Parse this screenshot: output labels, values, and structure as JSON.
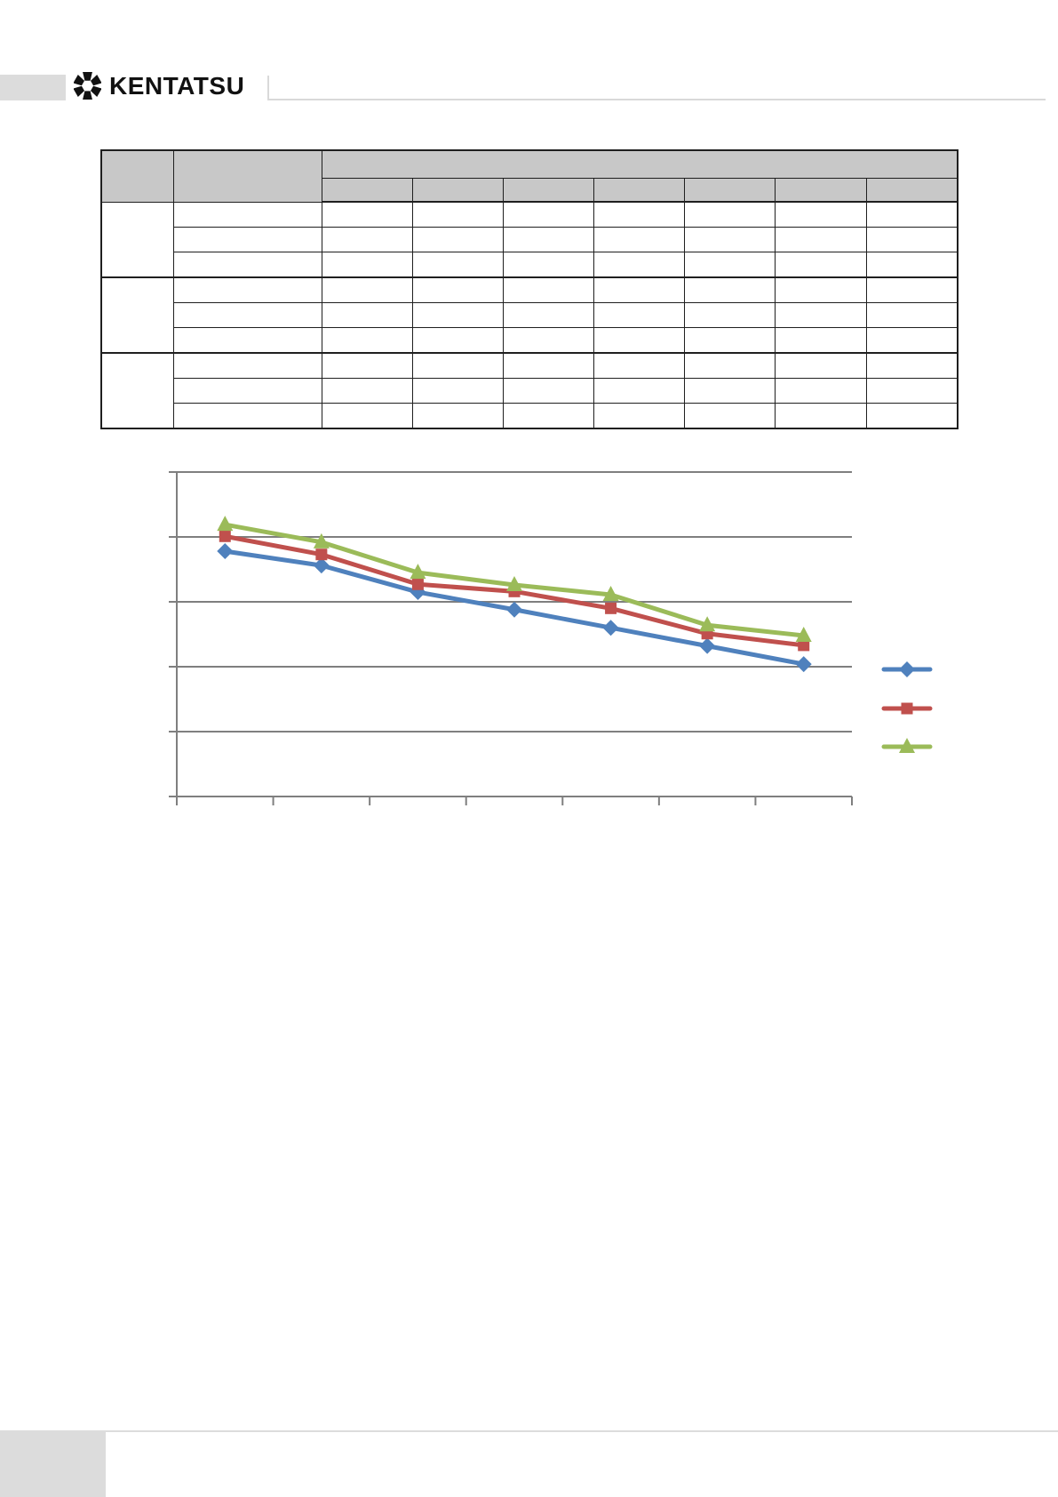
{
  "header": {
    "brand": "KENTATSU",
    "logo_icon": "gear-snowflake-icon",
    "bar_color": "#dcdcdc",
    "rule_color": "#d9d9d9",
    "text_color": "#111111"
  },
  "table": {
    "header_fill": "#c8c8c8",
    "border_color": "#1f1f1f",
    "header": {
      "corner_cell": "",
      "label_cell": "",
      "merged_span_cell": "",
      "sub_cells": [
        "",
        "",
        "",
        "",
        "",
        "",
        ""
      ]
    },
    "groups": [
      {
        "label": "",
        "rows": [
          [
            "",
            "",
            "",
            "",
            "",
            "",
            "",
            ""
          ],
          [
            "",
            "",
            "",
            "",
            "",
            "",
            "",
            ""
          ],
          [
            "",
            "",
            "",
            "",
            "",
            "",
            "",
            ""
          ]
        ]
      },
      {
        "label": "",
        "rows": [
          [
            "",
            "",
            "",
            "",
            "",
            "",
            "",
            ""
          ],
          [
            "",
            "",
            "",
            "",
            "",
            "",
            "",
            ""
          ],
          [
            "",
            "",
            "",
            "",
            "",
            "",
            "",
            ""
          ]
        ]
      },
      {
        "label": "",
        "rows": [
          [
            "",
            "",
            "",
            "",
            "",
            "",
            "",
            ""
          ],
          [
            "",
            "",
            "",
            "",
            "",
            "",
            "",
            ""
          ],
          [
            "",
            "",
            "",
            "",
            "",
            "",
            "",
            ""
          ]
        ]
      }
    ]
  },
  "chart_data": {
    "type": "line",
    "title": "",
    "xlabel": "",
    "ylabel": "",
    "categories": [
      "",
      "",
      "",
      "",
      "",
      "",
      ""
    ],
    "series": [
      {
        "name": "",
        "marker": "diamond",
        "color": "#4F81BD",
        "values": [
          3.78,
          3.56,
          3.15,
          2.88,
          2.6,
          2.32,
          2.04
        ]
      },
      {
        "name": "",
        "marker": "square",
        "color": "#C0504D",
        "values": [
          4.01,
          3.73,
          3.27,
          3.16,
          2.9,
          2.51,
          2.33
        ]
      },
      {
        "name": "",
        "marker": "triangle",
        "color": "#9BBB59",
        "values": [
          4.19,
          3.92,
          3.45,
          3.26,
          3.11,
          2.64,
          2.48
        ]
      }
    ],
    "ylim": [
      0,
      5
    ],
    "gridline_values": [
      1,
      2,
      3,
      4,
      5
    ],
    "grid": "horizontal",
    "gridline_color": "#7f7f7f",
    "axis_color": "#7f7f7f",
    "tick_labels_visible": false,
    "legend_position": "right",
    "legend_labels_visible": false
  },
  "footer": {
    "bar_color": "#dcdcdc"
  }
}
